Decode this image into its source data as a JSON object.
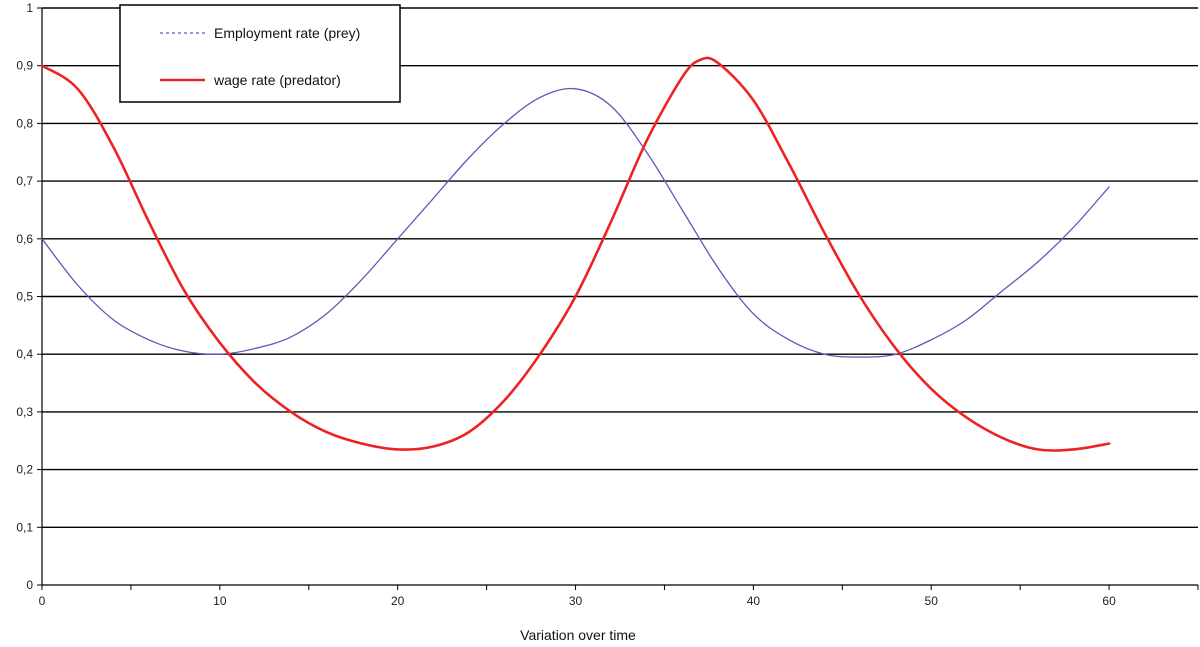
{
  "chart_data": {
    "type": "line",
    "title": "",
    "xlabel": "Variation  over time",
    "ylabel": "",
    "xlim": [
      0,
      65
    ],
    "ylim": [
      0,
      1
    ],
    "x_ticks": [
      "0",
      "10",
      "20",
      "30",
      "40",
      "50",
      "60"
    ],
    "y_ticks": [
      "0",
      "0,1",
      "0,2",
      "0,3",
      "0,4",
      "0,5",
      "0,6",
      "0,7",
      "0,8",
      "0,9",
      "1"
    ],
    "grid": true,
    "legend_position": "top-left",
    "series": [
      {
        "name": "Employment rate (prey)",
        "color": "#5a5ab8",
        "style": "thin",
        "points": [
          [
            0,
            0.6
          ],
          [
            2,
            0.52
          ],
          [
            4,
            0.46
          ],
          [
            6,
            0.425
          ],
          [
            8,
            0.405
          ],
          [
            10,
            0.4
          ],
          [
            12,
            0.41
          ],
          [
            14,
            0.43
          ],
          [
            16,
            0.47
          ],
          [
            18,
            0.53
          ],
          [
            20,
            0.6
          ],
          [
            22,
            0.67
          ],
          [
            24,
            0.74
          ],
          [
            26,
            0.8
          ],
          [
            28,
            0.845
          ],
          [
            30,
            0.86
          ],
          [
            32,
            0.83
          ],
          [
            34,
            0.75
          ],
          [
            36,
            0.65
          ],
          [
            38,
            0.55
          ],
          [
            40,
            0.47
          ],
          [
            42,
            0.425
          ],
          [
            44,
            0.4
          ],
          [
            46,
            0.395
          ],
          [
            48,
            0.4
          ],
          [
            50,
            0.425
          ],
          [
            52,
            0.46
          ],
          [
            54,
            0.51
          ],
          [
            56,
            0.56
          ],
          [
            58,
            0.62
          ],
          [
            60,
            0.69
          ]
        ]
      },
      {
        "name": "wage rate (predator)",
        "color": "#ee2222",
        "style": "thick",
        "points": [
          [
            0,
            0.9
          ],
          [
            2,
            0.86
          ],
          [
            4,
            0.76
          ],
          [
            6,
            0.63
          ],
          [
            8,
            0.51
          ],
          [
            10,
            0.42
          ],
          [
            12,
            0.35
          ],
          [
            14,
            0.3
          ],
          [
            16,
            0.265
          ],
          [
            18,
            0.245
          ],
          [
            20,
            0.235
          ],
          [
            22,
            0.24
          ],
          [
            24,
            0.265
          ],
          [
            26,
            0.32
          ],
          [
            28,
            0.4
          ],
          [
            30,
            0.5
          ],
          [
            32,
            0.63
          ],
          [
            34,
            0.77
          ],
          [
            36,
            0.88
          ],
          [
            37,
            0.91
          ],
          [
            38,
            0.905
          ],
          [
            40,
            0.84
          ],
          [
            42,
            0.73
          ],
          [
            44,
            0.61
          ],
          [
            46,
            0.5
          ],
          [
            48,
            0.41
          ],
          [
            50,
            0.34
          ],
          [
            52,
            0.29
          ],
          [
            54,
            0.255
          ],
          [
            56,
            0.235
          ],
          [
            58,
            0.235
          ],
          [
            60,
            0.245
          ]
        ]
      }
    ]
  }
}
